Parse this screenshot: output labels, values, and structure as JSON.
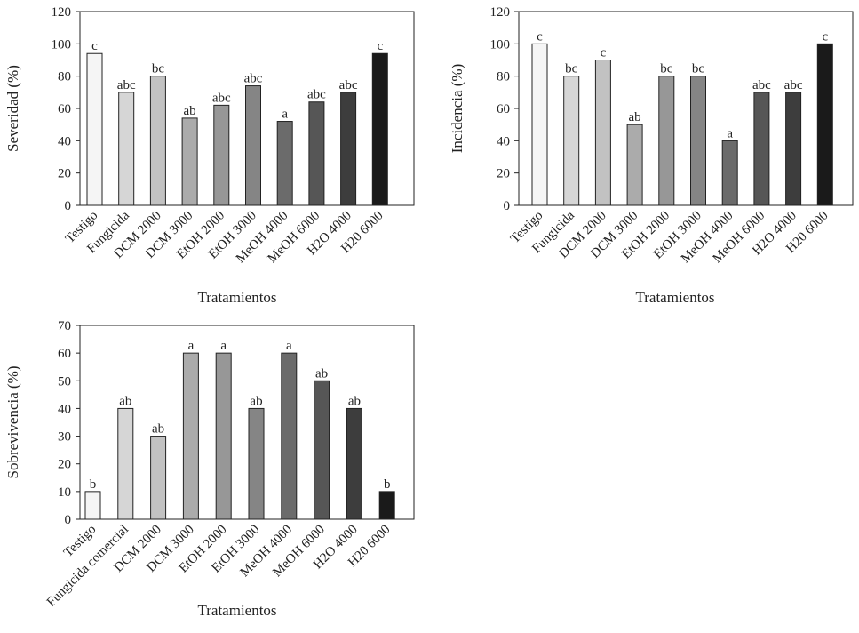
{
  "bar_colors": [
    "#f5f5f5",
    "#d6d6d6",
    "#c2c2c2",
    "#ababab",
    "#979797",
    "#858585",
    "#6b6b6b",
    "#565656",
    "#3d3d3d",
    "#1a1a1a"
  ],
  "chart_data": [
    {
      "type": "bar",
      "ylabel": "Severidad (%)",
      "xlabel": "Tratamientos",
      "ylim": [
        0,
        120
      ],
      "yticks": [
        "0",
        "20",
        "40",
        "60",
        "80",
        "100",
        "120"
      ],
      "grid": false,
      "categories": [
        "Testigo",
        "Fungicida",
        "DCM 2000",
        "DCM 3000",
        "EtOH 2000",
        "EtOH 3000",
        "MeOH 4000",
        "MeOH 6000",
        "H2O 4000",
        "H20 6000"
      ],
      "values": [
        94,
        70,
        80,
        54,
        62,
        74,
        52,
        64,
        70,
        94
      ],
      "labels": [
        "c",
        "abc",
        "bc",
        "ab",
        "abc",
        "abc",
        "a",
        "abc",
        "abc",
        "c"
      ]
    },
    {
      "type": "bar",
      "ylabel": "Incidencia (%)",
      "xlabel": "Tratamientos",
      "ylim": [
        0,
        120
      ],
      "yticks": [
        "0",
        "20",
        "40",
        "60",
        "80",
        "100",
        "120"
      ],
      "grid": false,
      "categories": [
        "Testigo",
        "Fungicida",
        "DCM 2000",
        "DCM 3000",
        "EtOH 2000",
        "EtOH 3000",
        "MeOH 4000",
        "MeOH 6000",
        "H2O 4000",
        "H20 6000"
      ],
      "values": [
        100,
        80,
        90,
        50,
        80,
        80,
        40,
        70,
        70,
        100
      ],
      "labels": [
        "c",
        "bc",
        "c",
        "ab",
        "bc",
        "bc",
        "a",
        "abc",
        "abc",
        "c"
      ]
    },
    {
      "type": "bar",
      "ylabel": "Sobrevivencia (%)",
      "xlabel": "Tratamientos",
      "ylim": [
        0,
        70
      ],
      "yticks": [
        "0",
        "10",
        "20",
        "30",
        "40",
        "50",
        "60",
        "70"
      ],
      "grid": false,
      "categories": [
        "Testigo",
        "Fungicida comercial",
        "DCM 2000",
        "DCM 3000",
        "EtOH 2000",
        "EtOH 3000",
        "MeOH 4000",
        "MeOH 6000",
        "H2O 4000",
        "H20 6000"
      ],
      "values": [
        10,
        40,
        30,
        60,
        60,
        40,
        60,
        50,
        40,
        10
      ],
      "labels": [
        "b",
        "ab",
        "ab",
        "a",
        "a",
        "ab",
        "a",
        "ab",
        "ab",
        "b"
      ]
    }
  ]
}
